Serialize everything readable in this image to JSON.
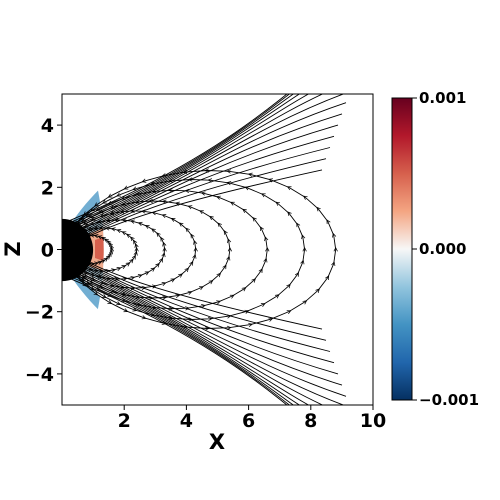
{
  "chart_data": {
    "type": "heatmap",
    "title": "",
    "xlabel": "X",
    "ylabel": "Z",
    "xlim": [
      0,
      10
    ],
    "ylim": [
      -5,
      5
    ],
    "x_ticks": [
      2,
      4,
      6,
      8,
      10
    ],
    "x_tick_labels": [
      "2",
      "4",
      "6",
      "8",
      "10"
    ],
    "y_ticks": [
      -4,
      -2,
      0,
      2,
      4
    ],
    "y_tick_labels": [
      "−4",
      "−2",
      "0",
      "2",
      "4"
    ],
    "grid": false,
    "colorbar": {
      "colormap": "RdBu_r",
      "range": [
        -0.001,
        0.001
      ],
      "ticks": [
        0.001,
        0.0,
        -0.001
      ],
      "tick_labels": [
        "0.001",
        "0.000",
        "−0.001"
      ],
      "placement": "right"
    },
    "overlay": "streamlines with arrows",
    "body": {
      "shape": "half-disk",
      "radius": 1,
      "color": "#000000"
    },
    "outer_boundary_radius": 10
  }
}
